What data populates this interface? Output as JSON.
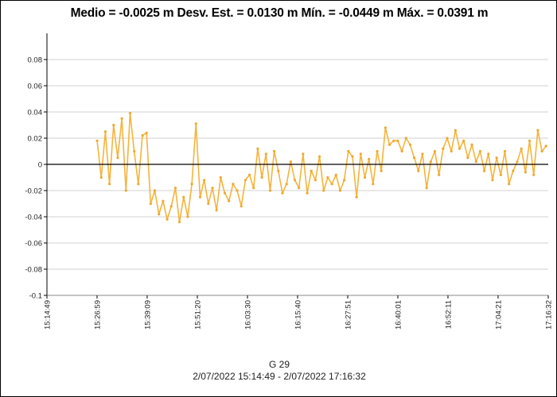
{
  "chart_data": {
    "type": "line",
    "title": "Medio = -0.0025 m  Desv. Est. = 0.0130 m  Mín. = -0.0449 m  Máx. = 0.0391 m",
    "series_label": "G 29",
    "range_label": "2/07/2022 15:14:49 - 2/07/2022 17:16:32",
    "xlim": [
      "15:14:49",
      "17:16:32"
    ],
    "x_ticks": [
      "15:14:49",
      "15:26:59",
      "15:39:09",
      "15:51:20",
      "16:03:30",
      "16:15:40",
      "16:27:51",
      "16:40:01",
      "16:52:11",
      "17:04:21",
      "17:16:32"
    ],
    "ylim": [
      -0.1,
      0.1
    ],
    "y_ticks": [
      "0.08",
      "0.06",
      "0.04",
      "0.02",
      "0",
      "-0.02",
      "-0.04",
      "-0.06",
      "-0.08",
      "-0.1"
    ],
    "y_tick_values": [
      0.08,
      0.06,
      0.04,
      0.02,
      0,
      -0.02,
      -0.04,
      -0.06,
      -0.08,
      -0.1
    ],
    "grid": "horizontal",
    "zero_line": true,
    "colors": {
      "series": "#f5b43c",
      "zero_line": "#000000",
      "grid": "#d0d0d0"
    },
    "points": [
      [
        "15:27:00",
        0.018
      ],
      [
        "15:28:00",
        -0.01
      ],
      [
        "15:29:00",
        0.025
      ],
      [
        "15:30:00",
        -0.015
      ],
      [
        "15:31:00",
        0.03
      ],
      [
        "15:32:00",
        0.005
      ],
      [
        "15:33:00",
        0.035
      ],
      [
        "15:34:00",
        -0.02
      ],
      [
        "15:35:00",
        0.039
      ],
      [
        "15:36:00",
        0.01
      ],
      [
        "15:37:00",
        -0.015
      ],
      [
        "15:38:00",
        0.022
      ],
      [
        "15:39:00",
        0.024
      ],
      [
        "15:40:00",
        -0.03
      ],
      [
        "15:41:00",
        -0.02
      ],
      [
        "15:42:00",
        -0.038
      ],
      [
        "15:43:00",
        -0.028
      ],
      [
        "15:44:00",
        -0.042
      ],
      [
        "15:45:00",
        -0.032
      ],
      [
        "15:46:00",
        -0.018
      ],
      [
        "15:47:00",
        -0.044
      ],
      [
        "15:48:00",
        -0.025
      ],
      [
        "15:49:00",
        -0.04
      ],
      [
        "15:50:00",
        -0.015
      ],
      [
        "15:51:00",
        0.031
      ],
      [
        "15:52:00",
        -0.025
      ],
      [
        "15:53:00",
        -0.012
      ],
      [
        "15:54:00",
        -0.03
      ],
      [
        "15:55:00",
        -0.018
      ],
      [
        "15:56:00",
        -0.035
      ],
      [
        "15:57:00",
        -0.01
      ],
      [
        "15:58:00",
        -0.022
      ],
      [
        "15:59:00",
        -0.028
      ],
      [
        "16:00:00",
        -0.015
      ],
      [
        "16:01:00",
        -0.02
      ],
      [
        "16:02:00",
        -0.032
      ],
      [
        "16:03:00",
        -0.012
      ],
      [
        "16:04:00",
        -0.008
      ],
      [
        "16:05:00",
        -0.018
      ],
      [
        "16:06:00",
        0.012
      ],
      [
        "16:07:00",
        -0.01
      ],
      [
        "16:08:00",
        0.008
      ],
      [
        "16:09:00",
        -0.02
      ],
      [
        "16:10:00",
        0.01
      ],
      [
        "16:11:00",
        -0.005
      ],
      [
        "16:12:00",
        -0.022
      ],
      [
        "16:13:00",
        -0.015
      ],
      [
        "16:14:00",
        0.002
      ],
      [
        "16:15:00",
        -0.012
      ],
      [
        "16:16:00",
        -0.018
      ],
      [
        "16:17:00",
        0.008
      ],
      [
        "16:18:00",
        -0.022
      ],
      [
        "16:19:00",
        -0.005
      ],
      [
        "16:20:00",
        -0.012
      ],
      [
        "16:21:00",
        0.006
      ],
      [
        "16:22:00",
        -0.02
      ],
      [
        "16:23:00",
        -0.01
      ],
      [
        "16:24:00",
        -0.015
      ],
      [
        "16:25:00",
        -0.008
      ],
      [
        "16:26:00",
        -0.02
      ],
      [
        "16:27:00",
        -0.012
      ],
      [
        "16:28:00",
        0.01
      ],
      [
        "16:29:00",
        0.006
      ],
      [
        "16:30:00",
        -0.025
      ],
      [
        "16:31:00",
        0.008
      ],
      [
        "16:32:00",
        -0.01
      ],
      [
        "16:33:00",
        0.004
      ],
      [
        "16:34:00",
        -0.015
      ],
      [
        "16:35:00",
        0.01
      ],
      [
        "16:36:00",
        -0.005
      ],
      [
        "16:37:00",
        0.028
      ],
      [
        "16:38:00",
        0.015
      ],
      [
        "16:39:00",
        0.018
      ],
      [
        "16:40:00",
        0.018
      ],
      [
        "16:41:00",
        0.01
      ],
      [
        "16:42:00",
        0.02
      ],
      [
        "16:43:00",
        0.015
      ],
      [
        "16:44:00",
        0.005
      ],
      [
        "16:45:00",
        -0.005
      ],
      [
        "16:46:00",
        0.008
      ],
      [
        "16:47:00",
        -0.018
      ],
      [
        "16:48:00",
        0.002
      ],
      [
        "16:49:00",
        0.01
      ],
      [
        "16:50:00",
        -0.008
      ],
      [
        "16:51:00",
        0.012
      ],
      [
        "16:52:00",
        0.02
      ],
      [
        "16:53:00",
        0.01
      ],
      [
        "16:54:00",
        0.026
      ],
      [
        "16:55:00",
        0.012
      ],
      [
        "16:56:00",
        0.018
      ],
      [
        "16:57:00",
        0.005
      ],
      [
        "16:58:00",
        0.015
      ],
      [
        "16:59:00",
        0.002
      ],
      [
        "17:00:00",
        0.01
      ],
      [
        "17:01:00",
        -0.005
      ],
      [
        "17:02:00",
        0.008
      ],
      [
        "17:03:00",
        -0.012
      ],
      [
        "17:04:00",
        0.005
      ],
      [
        "17:05:00",
        -0.008
      ],
      [
        "17:06:00",
        0.01
      ],
      [
        "17:07:00",
        -0.015
      ],
      [
        "17:08:00",
        -0.005
      ],
      [
        "17:09:00",
        0.002
      ],
      [
        "17:10:00",
        0.012
      ],
      [
        "17:11:00",
        -0.006
      ],
      [
        "17:12:00",
        0.018
      ],
      [
        "17:13:00",
        -0.008
      ],
      [
        "17:14:00",
        0.026
      ],
      [
        "17:15:00",
        0.01
      ],
      [
        "17:16:00",
        0.014
      ]
    ]
  }
}
